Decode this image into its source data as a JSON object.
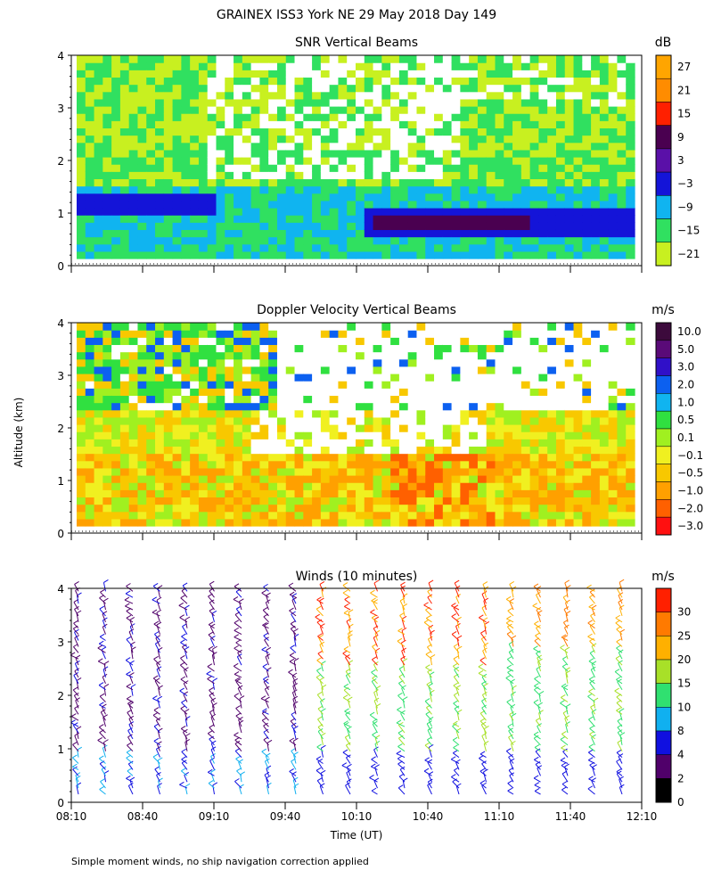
{
  "title": "GRAINEX ISS3 York NE   29 May 2018 Day 149",
  "ylabel": "Altitude (km)",
  "xlabel": "Time (UT)",
  "footnote": "Simple moment winds, no ship navigation correction applied",
  "chart_data": [
    {
      "type": "heatmap",
      "title": "SNR Vertical Beams",
      "unit": "dB",
      "ylim": [
        0,
        4
      ],
      "yticks": [
        "0",
        "1",
        "2",
        "3",
        "4"
      ],
      "colorbar": {
        "labels": [
          "27",
          "21",
          "15",
          "9",
          "3",
          "−3",
          "−9",
          "−15",
          "−21"
        ],
        "colors": [
          "#ffa500",
          "#ff8c00",
          "#ff2000",
          "#4a0050",
          "#5a10a8",
          "#1414d8",
          "#10b4f0",
          "#30e060",
          "#c8f020"
        ]
      }
    },
    {
      "type": "heatmap",
      "title": "Doppler Velocity Vertical Beams",
      "unit": "m/s",
      "ylim": [
        0,
        4
      ],
      "yticks": [
        "0",
        "1",
        "2",
        "3",
        "4"
      ],
      "colorbar": {
        "labels": [
          "10.0",
          "5.0",
          "3.0",
          "2.0",
          "1.0",
          "0.5",
          "0.1",
          "−0.1",
          "−0.5",
          "−1.0",
          "−2.0",
          "−3.0"
        ],
        "colors": [
          "#3c0a3c",
          "#5a0a78",
          "#3010c8",
          "#0c60f0",
          "#10b4f0",
          "#30e040",
          "#a0f020",
          "#f0f020",
          "#f8c800",
          "#ffa000",
          "#ff6000",
          "#ff1010"
        ]
      }
    },
    {
      "type": "scatter",
      "title": "Winds (10 minutes)",
      "unit": "m/s",
      "ylim": [
        0,
        4
      ],
      "yticks": [
        "0",
        "1",
        "2",
        "3",
        "4"
      ],
      "colorbar": {
        "labels": [
          "30",
          "25",
          "20",
          "15",
          "10",
          "8",
          "4",
          "2",
          "0"
        ],
        "colors": [
          "#ff2000",
          "#ff7a00",
          "#ffb000",
          "#a8e028",
          "#30e070",
          "#10b0f0",
          "#1010e0",
          "#50006a",
          "#000000"
        ]
      }
    }
  ],
  "xticks": [
    "08:10",
    "08:40",
    "09:10",
    "09:40",
    "10:10",
    "10:40",
    "11:10",
    "11:40",
    "12:10"
  ]
}
